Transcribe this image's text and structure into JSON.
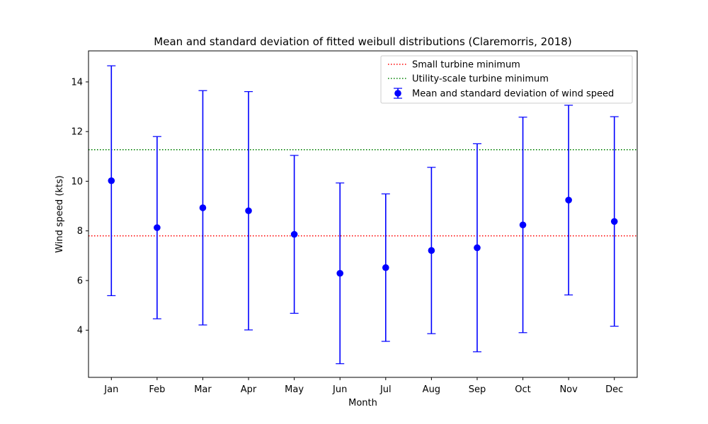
{
  "chart_data": {
    "type": "errorbar",
    "title": "Mean and standard deviation of fitted weibull distributions (Claremorris, 2018)",
    "xlabel": "Month",
    "ylabel": "Wind speed (kts)",
    "categories": [
      "Jan",
      "Feb",
      "Mar",
      "Apr",
      "May",
      "Jun",
      "Jul",
      "Aug",
      "Sep",
      "Oct",
      "Nov",
      "Dec"
    ],
    "series": [
      {
        "name": "Mean and standard deviation of wind speed",
        "color": "#0000ff",
        "values": [
          10.02,
          8.13,
          8.93,
          8.81,
          7.86,
          6.29,
          6.52,
          7.21,
          7.32,
          8.24,
          9.24,
          8.38
        ],
        "std": [
          4.63,
          3.67,
          4.72,
          4.8,
          3.18,
          3.64,
          2.97,
          3.35,
          4.19,
          4.34,
          3.82,
          4.22
        ]
      }
    ],
    "hlines": [
      {
        "name": "Small turbine minimum",
        "y": 7.8,
        "color": "#ff0000",
        "style": "dotted"
      },
      {
        "name": "Utility-scale turbine minimum",
        "y": 11.27,
        "color": "#008000",
        "style": "dotted"
      }
    ],
    "ylim": [
      2.1,
      15.25
    ],
    "yticks": [
      4,
      6,
      8,
      10,
      12,
      14
    ],
    "grid": false,
    "legend_position": "top-right"
  }
}
